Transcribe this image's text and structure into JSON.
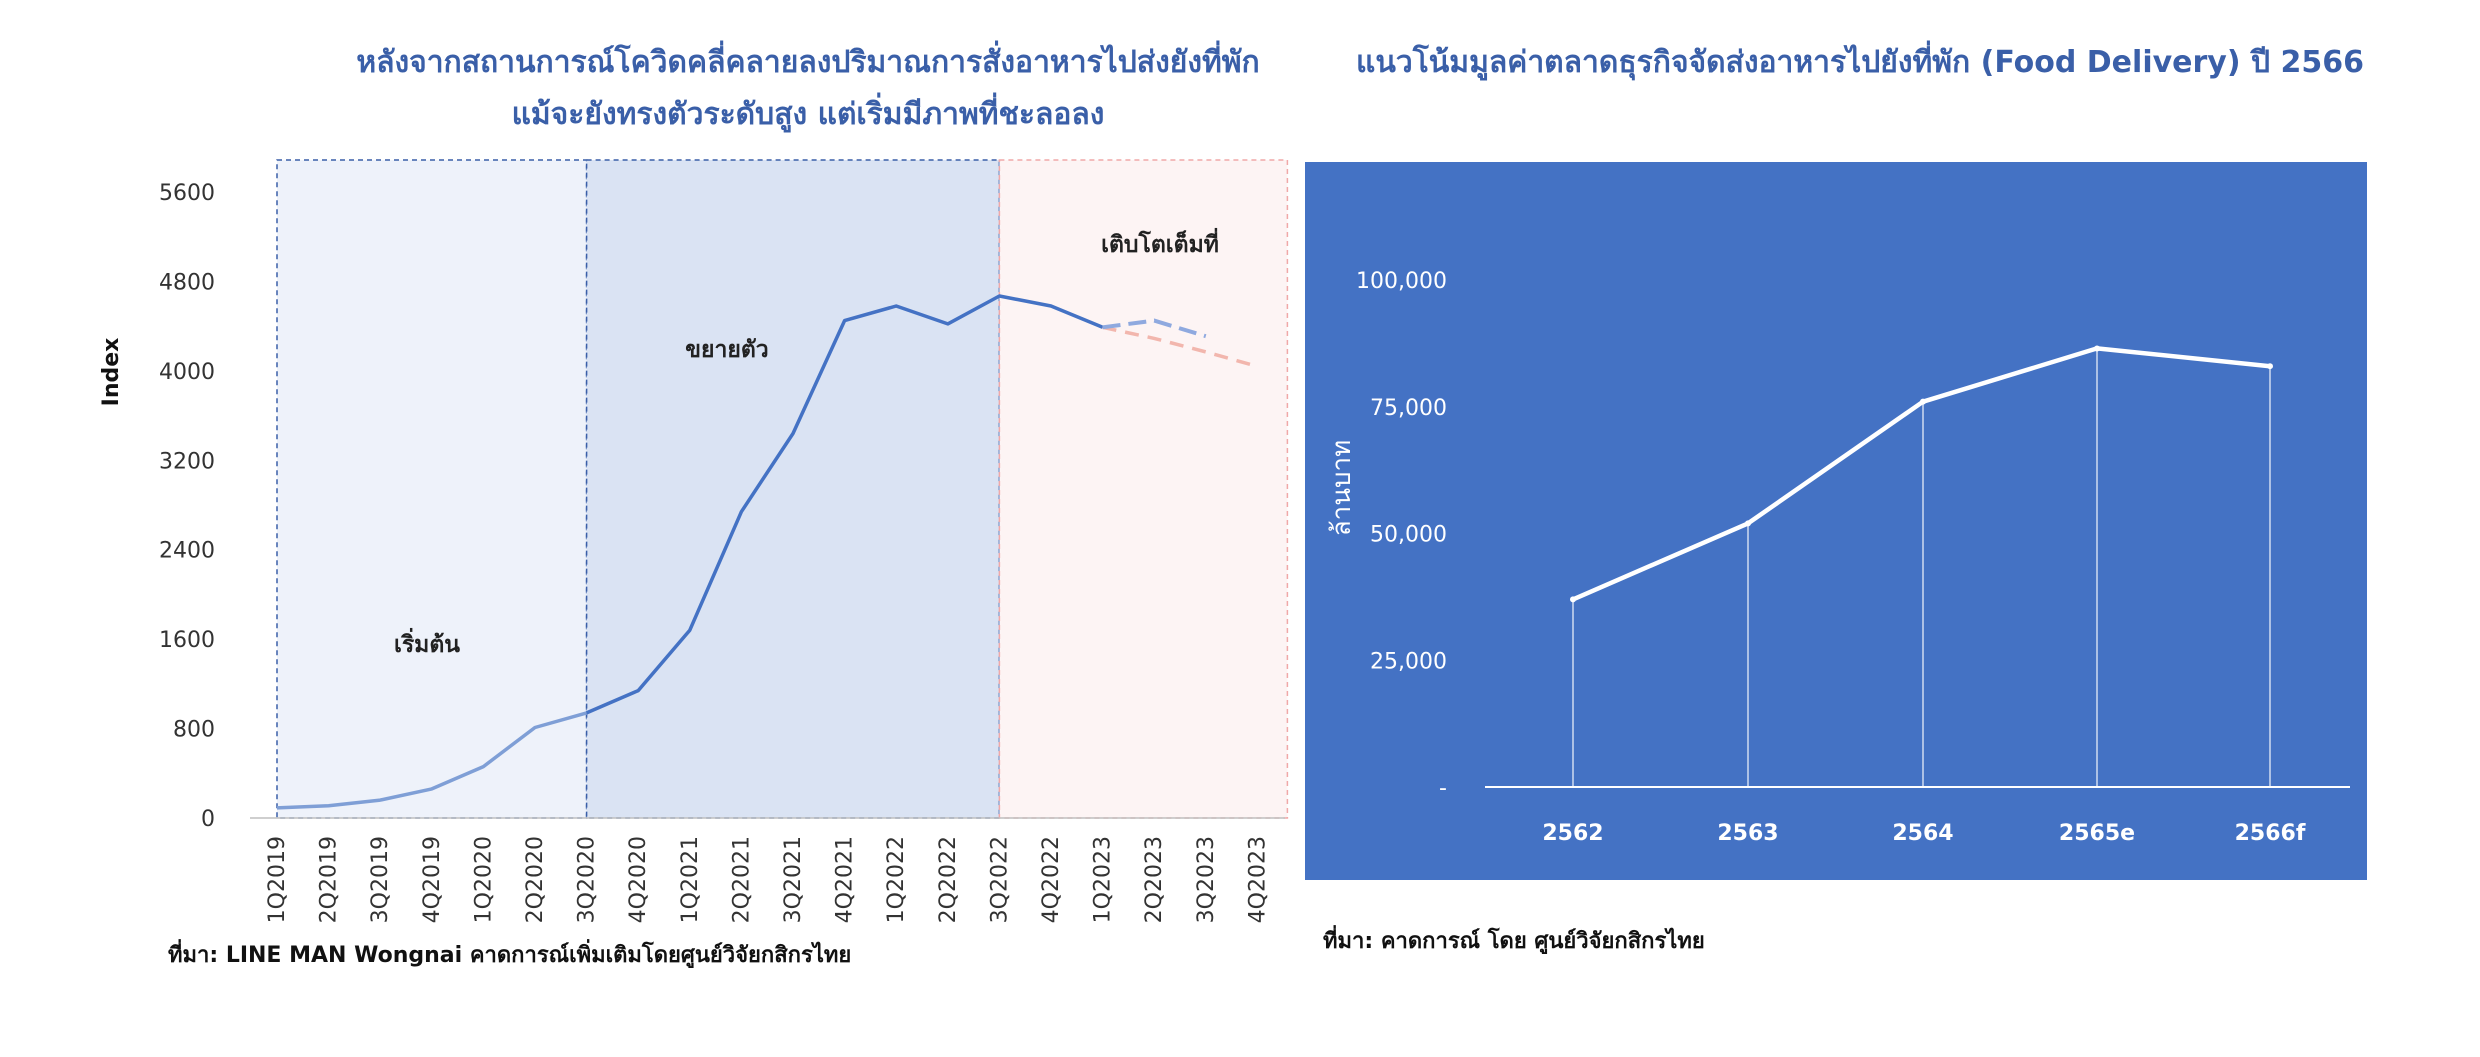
{
  "colors": {
    "line_main": "#4472c4",
    "line_early": "#7f9fd6",
    "forecast_a": "#8fa9df",
    "forecast_b": "#f2b6ad",
    "region_start_fill": "#eef2fa",
    "region_expand_fill": "#dae3f3",
    "region_full_fill": "#fdf4f4",
    "region_border_blue": "#3a5fa8",
    "region_border_pink": "#f0a8a8",
    "right_panel_bg": "#4472c4",
    "right_line": "#ffffff"
  },
  "chart_data": [
    {
      "type": "line",
      "title": "หลังจากสถานการณ์โควิดคลี่คลายลงปริมาณการสั่งอาหารไปส่งยังที่พัก แม้จะยังทรงตัวระดับสูง แต่เริ่มมีภาพที่ชะลอลง",
      "title_lines": [
        "หลังจากสถานการณ์โควิดคลี่คลายลงปริมาณการสั่งอาหารไปส่งยังที่พัก",
        "แม้จะยังทรงตัวระดับสูง แต่เริ่มมีภาพที่ชะลอลง"
      ],
      "ylabel": "Index",
      "xlabel": "",
      "ylim": [
        0,
        5600
      ],
      "yticks": [
        0,
        800,
        1600,
        2400,
        3200,
        4000,
        4800,
        5600
      ],
      "categories": [
        "1Q2019",
        "2Q2019",
        "3Q2019",
        "4Q2019",
        "1Q2020",
        "2Q2020",
        "3Q2020",
        "4Q2020",
        "1Q2021",
        "2Q2021",
        "3Q2021",
        "4Q2021",
        "1Q2022",
        "2Q2022",
        "3Q2022",
        "4Q2022",
        "1Q2023",
        "2Q2023",
        "3Q2023",
        "4Q2023"
      ],
      "series": [
        {
          "values": [
            90,
            110,
            160,
            260,
            460,
            810,
            940,
            1140,
            1680,
            2740,
            3440,
            4450,
            4580,
            4420,
            4670,
            4580,
            4390,
            null,
            null,
            null
          ]
        },
        {
          "values": [
            null,
            null,
            null,
            null,
            null,
            null,
            null,
            null,
            null,
            null,
            null,
            null,
            null,
            null,
            null,
            null,
            4390,
            4450,
            4310,
            null
          ],
          "style": "dashed"
        },
        {
          "values": [
            null,
            null,
            null,
            null,
            null,
            null,
            null,
            null,
            null,
            null,
            null,
            null,
            null,
            null,
            null,
            null,
            4390,
            4290,
            4170,
            4040
          ],
          "style": "dashed"
        }
      ],
      "regions": [
        {
          "label": "เริ่มต้น",
          "from": "1Q2019",
          "to": "3Q2020"
        },
        {
          "label": "ขยายตัว",
          "from": "3Q2020",
          "to": "3Q2022"
        },
        {
          "label": "เติบโตเต็มที่",
          "from": "3Q2022",
          "to": "4Q2023"
        }
      ],
      "grid": false,
      "source": "ที่มา: LINE MAN Wongnai คาดการณ์เพิ่มเติมโดยศูนย์วิจัยกสิกรไทย"
    },
    {
      "type": "line",
      "title": "แนวโน้มมูลค่าตลาดธุรกิจจัดส่งอาหารไปยังที่พัก (Food Delivery) ปี 2566",
      "ylabel": "ล้านบาท",
      "xlabel": "",
      "ylim": [
        0,
        100000
      ],
      "yticks": [
        0,
        25000,
        50000,
        75000,
        100000
      ],
      "ytick_labels": [
        "-",
        "25,000",
        "50,000",
        "75,000",
        "100,000"
      ],
      "categories": [
        "2562",
        "2563",
        "2564",
        "2565e",
        "2566f"
      ],
      "values": [
        37000,
        52000,
        76000,
        86500,
        83000
      ],
      "grid": false,
      "drop_lines": true,
      "source": "ที่มา: คาดการณ์ โดย ศูนย์วิจัยกสิกรไทย"
    }
  ]
}
